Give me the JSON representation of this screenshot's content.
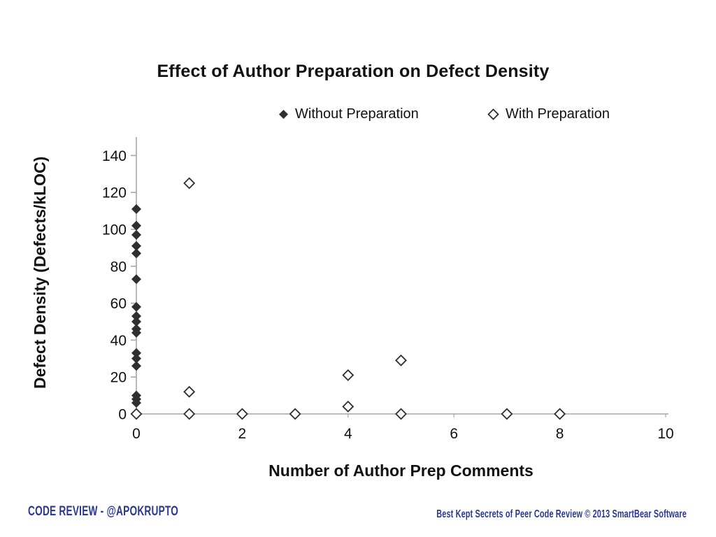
{
  "chart_data": {
    "type": "scatter",
    "title": "Effect of Author Preparation on Defect Density",
    "xlabel": "Number of Author Prep Comments",
    "ylabel": "Defect Density (Defects/kLOC)",
    "xlim": [
      0,
      10
    ],
    "ylim": [
      0,
      150
    ],
    "x_ticks": [
      0,
      2,
      4,
      6,
      8,
      10
    ],
    "y_ticks": [
      0,
      20,
      40,
      60,
      80,
      100,
      120,
      140
    ],
    "grid": false,
    "legend_position": "top-center",
    "series": [
      {
        "name": "Without Preparation",
        "marker": "filled-diamond",
        "points": [
          [
            0,
            111
          ],
          [
            0,
            102
          ],
          [
            0,
            97
          ],
          [
            0,
            91
          ],
          [
            0,
            87
          ],
          [
            0,
            73
          ],
          [
            0,
            58
          ],
          [
            0,
            53
          ],
          [
            0,
            50
          ],
          [
            0,
            46
          ],
          [
            0,
            44
          ],
          [
            0,
            33
          ],
          [
            0,
            30
          ],
          [
            0,
            26
          ],
          [
            0,
            10
          ],
          [
            0,
            8
          ],
          [
            0,
            6
          ]
        ]
      },
      {
        "name": "With Preparation",
        "marker": "hollow-diamond",
        "points": [
          [
            0,
            0
          ],
          [
            1,
            125
          ],
          [
            1,
            12
          ],
          [
            1,
            0
          ],
          [
            2,
            0
          ],
          [
            3,
            0
          ],
          [
            4,
            21
          ],
          [
            4,
            4
          ],
          [
            5,
            29
          ],
          [
            5,
            0
          ],
          [
            7,
            0
          ],
          [
            8,
            0
          ]
        ]
      }
    ]
  },
  "footer": {
    "left": "CODE REVIEW - @APOKRUPTO",
    "right": "Best Kept Secrets of Peer Code Review © 2013 SmartBear Software"
  },
  "colors": {
    "marker": "#2f2f2f",
    "axis": "#a6a6a6",
    "text": "#111111",
    "footer_blue": "#2b3990",
    "background": "#ffffff"
  }
}
